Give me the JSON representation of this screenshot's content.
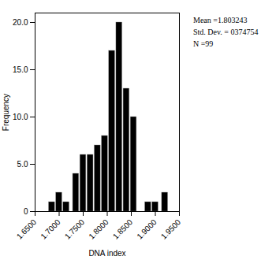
{
  "chart_data": {
    "type": "bar",
    "xlabel": "DNA index",
    "ylabel": "Frequency",
    "annotation": "Mean =1.803243\nStd. Dev. = 0374754\nN =99",
    "x": [
      1.685,
      1.7,
      1.715,
      1.735,
      1.75,
      1.765,
      1.78,
      1.795,
      1.81,
      1.825,
      1.84,
      1.855,
      1.885,
      1.9,
      1.92
    ],
    "values": [
      1,
      2,
      1,
      4,
      6,
      6,
      7,
      8,
      17,
      20,
      13,
      10,
      1,
      1,
      2
    ],
    "color": "#000000",
    "xlim": [
      1.65,
      1.95
    ],
    "ylim": [
      0,
      21
    ],
    "xticks": [
      {
        "value": 1.65,
        "label": "1.6500"
      },
      {
        "value": 1.7,
        "label": "1.7000"
      },
      {
        "value": 1.75,
        "label": "1.7500"
      },
      {
        "value": 1.8,
        "label": "1.8000"
      },
      {
        "value": 1.85,
        "label": "1.8500"
      },
      {
        "value": 1.9,
        "label": "1.9000"
      },
      {
        "value": 1.95,
        "label": "1.9500"
      }
    ],
    "yticks": [
      0,
      {
        "value": 5,
        "label": "5.0"
      },
      {
        "value": 10,
        "label": "10.0"
      },
      {
        "value": 15,
        "label": "15.0"
      },
      {
        "value": 20,
        "label": "20.0"
      }
    ],
    "grid": false
  }
}
